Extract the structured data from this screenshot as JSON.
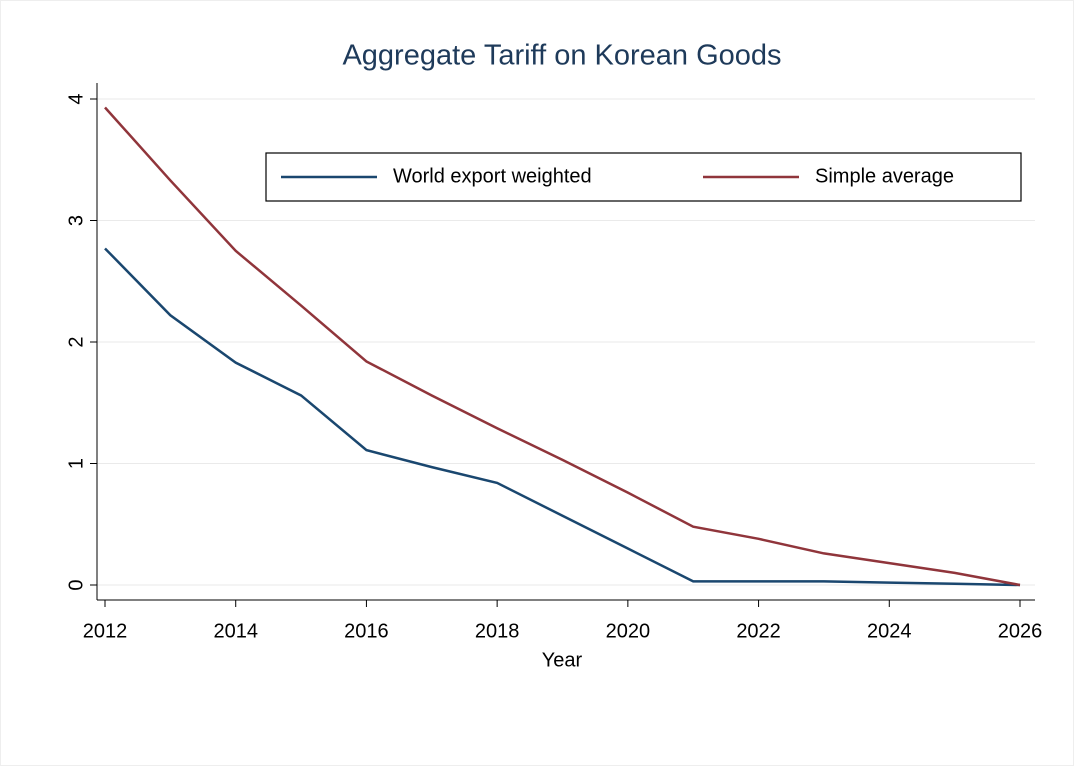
{
  "chart_data": {
    "type": "line",
    "title": "Aggregate Tariff on Korean Goods",
    "x_label": "Year",
    "x": [
      2012,
      2013,
      2014,
      2015,
      2016,
      2017,
      2018,
      2019,
      2020,
      2021,
      2022,
      2023,
      2024,
      2025,
      2026
    ],
    "series": [
      {
        "name": "World export weighted",
        "color": "#1a476f",
        "values": [
          2.77,
          2.22,
          1.83,
          1.56,
          1.11,
          0.97,
          0.84,
          0.57,
          0.3,
          0.03,
          0.03,
          0.03,
          0.02,
          0.01,
          0.0
        ]
      },
      {
        "name": "Simple average",
        "color": "#90353b",
        "values": [
          3.93,
          3.33,
          2.75,
          2.3,
          1.84,
          1.56,
          1.29,
          1.03,
          0.76,
          0.48,
          0.38,
          0.26,
          0.18,
          0.1,
          0.0
        ]
      }
    ],
    "xlim": [
      2012,
      2026
    ],
    "xticks": [
      2012,
      2014,
      2016,
      2018,
      2020,
      2022,
      2024,
      2026
    ],
    "ylim": [
      0,
      4
    ],
    "yticks": [
      0,
      1,
      2,
      3,
      4
    ],
    "grid": true,
    "legend": "top-right"
  }
}
